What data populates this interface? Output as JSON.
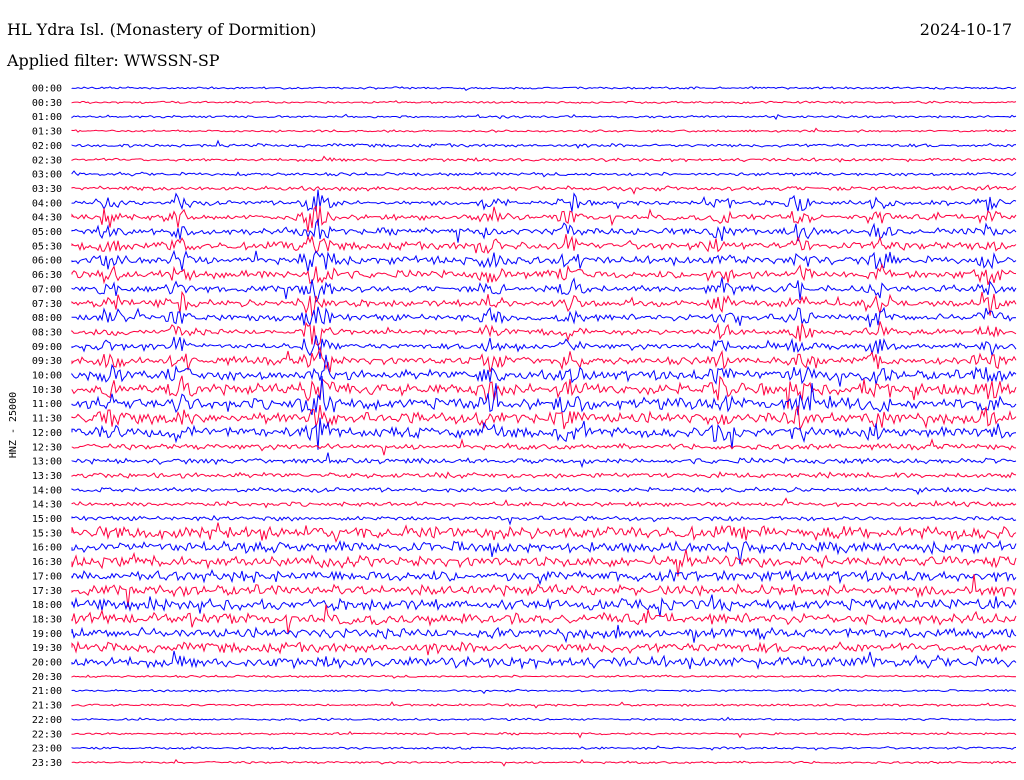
{
  "header": {
    "title": "HL Ydra Isl. (Monastery of Dormition)",
    "date": "2024-10-17",
    "filter": "Applied filter: WWSSN-SP"
  },
  "chart_data": {
    "type": "line",
    "ylabel": "HNZ - 25000",
    "rows": [
      "00:00",
      "00:30",
      "01:00",
      "01:30",
      "02:00",
      "02:30",
      "03:00",
      "03:30",
      "04:00",
      "04:30",
      "05:00",
      "05:30",
      "06:00",
      "06:30",
      "07:00",
      "07:30",
      "08:00",
      "08:30",
      "09:00",
      "09:30",
      "10:00",
      "10:30",
      "11:00",
      "11:30",
      "12:00",
      "12:30",
      "13:00",
      "13:30",
      "14:00",
      "14:30",
      "15:00",
      "15:30",
      "16:00",
      "16:30",
      "17:00",
      "17:30",
      "18:00",
      "18:30",
      "19:00",
      "19:30",
      "20:00",
      "20:30",
      "21:00",
      "21:30",
      "22:00",
      "22:30",
      "23:00",
      "23:30"
    ],
    "colors": [
      "#0000ff",
      "#ff0040"
    ],
    "noise_level": [
      1,
      1,
      1,
      1,
      1.5,
      1.5,
      1.5,
      2,
      2,
      2.5,
      3,
      3.5,
      3.5,
      3.5,
      3,
      3,
      3,
      2.5,
      2.5,
      3.5,
      4.5,
      5,
      5,
      5,
      4.5,
      2.5,
      2.5,
      2.5,
      2,
      2,
      2,
      6,
      5,
      5,
      5,
      5,
      5,
      5,
      4.5,
      4.5,
      5,
      1,
      1,
      1,
      1,
      1,
      1,
      1
    ]
  }
}
